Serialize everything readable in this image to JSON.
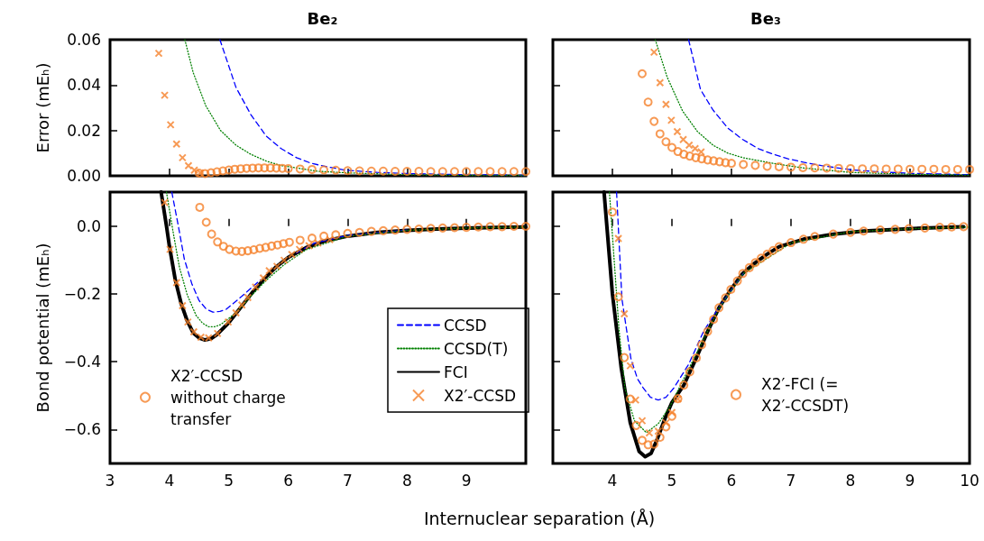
{
  "chart_data": [
    {
      "type": "line",
      "title": "Be₂",
      "ylabel": "Error (mEₕ)",
      "xlim": [
        3,
        10
      ],
      "xticks": [
        3,
        4,
        5,
        6,
        7,
        8,
        9
      ],
      "ylim": [
        0,
        0.06
      ],
      "yticks": [
        {
          "value": 0,
          "label": "0.00"
        },
        0.02,
        0.04,
        0.06
      ],
      "tick_labels": "y",
      "series": [
        {
          "color": "#0000ff",
          "line_style": "dashed",
          "marker": "none",
          "x": [
            4.85,
            5.12,
            5.37,
            5.63,
            5.88,
            6.14,
            6.39,
            6.65,
            6.96,
            7.5,
            8,
            9,
            10
          ],
          "values": [
            0.06,
            0.039,
            0.027,
            0.0175,
            0.012,
            0.008,
            0.0055,
            0.004,
            0.0025,
            0.0015,
            0.001,
            0.0005,
            0.0002
          ]
        },
        {
          "color": "#008000",
          "line_style": "dotted",
          "marker": "none",
          "x": [
            4.26,
            4.4,
            4.61,
            4.86,
            5.12,
            5.37,
            5.63,
            5.88,
            6.14,
            6.5,
            7,
            8,
            9,
            10
          ],
          "values": [
            0.06,
            0.0455,
            0.031,
            0.02,
            0.0135,
            0.0095,
            0.0065,
            0.0045,
            0.0035,
            0.002,
            0.0013,
            0.0005,
            0.0002,
            0.0001
          ]
        },
        {
          "type": "scatter",
          "color": "#f5812a",
          "marker": "cross",
          "x": [
            3.82,
            3.92,
            4.02,
            4.12,
            4.22,
            4.32,
            4.42,
            4.52
          ],
          "values": [
            0.054,
            0.0355,
            0.0225,
            0.014,
            0.008,
            0.0045,
            0.0025,
            0.0013
          ]
        },
        {
          "type": "scatter",
          "color": "#f5812a",
          "marker": "circle",
          "x": [
            4.5,
            4.6,
            4.7,
            4.8,
            4.9,
            5.0,
            5.1,
            5.2,
            5.3,
            5.4,
            5.5,
            5.6,
            5.7,
            5.8,
            5.9,
            6.0,
            6.2,
            6.4,
            6.6,
            6.8,
            7.0,
            7.2,
            7.4,
            7.6,
            7.8,
            8.0,
            8.2,
            8.4,
            8.6,
            8.8,
            9.0,
            9.2,
            9.4,
            9.6,
            9.8,
            10.0
          ],
          "values": [
            0.0012,
            0.001,
            0.0014,
            0.0018,
            0.0022,
            0.0026,
            0.0029,
            0.0031,
            0.0033,
            0.0034,
            0.0035,
            0.0035,
            0.0035,
            0.0034,
            0.0033,
            0.0032,
            0.003,
            0.0028,
            0.0026,
            0.0025,
            0.0023,
            0.0022,
            0.0021,
            0.0021,
            0.002,
            0.002,
            0.002,
            0.0019,
            0.0019,
            0.0019,
            0.0019,
            0.0019,
            0.0019,
            0.0019,
            0.0019,
            0.0019
          ]
        }
      ]
    },
    {
      "type": "line",
      "title": "Be₃",
      "xlim": [
        3,
        10
      ],
      "xticks": [
        4,
        5,
        6,
        7,
        8,
        9,
        10
      ],
      "ylim": [
        0,
        0.06
      ],
      "yticks": [
        0,
        0.02,
        0.04,
        0.06
      ],
      "tick_labels": false,
      "series": [
        {
          "color": "#0000ff",
          "line_style": "dashed",
          "marker": "none",
          "x": [
            5.28,
            5.48,
            5.69,
            5.94,
            6.19,
            6.45,
            6.7,
            6.95,
            7.21,
            7.51,
            8,
            8.5,
            9,
            10
          ],
          "values": [
            0.06,
            0.038,
            0.029,
            0.021,
            0.016,
            0.012,
            0.0095,
            0.0075,
            0.006,
            0.0045,
            0.0027,
            0.0017,
            0.0011,
            0.0005
          ]
        },
        {
          "color": "#008000",
          "line_style": "dotted",
          "marker": "none",
          "x": [
            4.72,
            4.92,
            5.18,
            5.43,
            5.69,
            5.94,
            6.19,
            6.7,
            7.2,
            8,
            9,
            10
          ],
          "values": [
            0.06,
            0.0435,
            0.0285,
            0.0195,
            0.0135,
            0.01,
            0.008,
            0.0055,
            0.0035,
            0.0015,
            0.0007,
            0.0003
          ]
        },
        {
          "type": "scatter",
          "color": "#f5812a",
          "marker": "cross",
          "x": [
            4.7,
            4.8,
            4.9,
            4.99,
            5.09,
            5.19,
            5.29,
            5.39,
            5.49
          ],
          "values": [
            0.0545,
            0.041,
            0.0315,
            0.0245,
            0.0195,
            0.016,
            0.0135,
            0.012,
            0.0105
          ]
        },
        {
          "type": "scatter",
          "color": "#f5812a",
          "marker": "circle",
          "x": [
            4.5,
            4.6,
            4.7,
            4.8,
            4.9,
            5.0,
            5.1,
            5.2,
            5.3,
            5.4,
            5.5,
            5.6,
            5.7,
            5.8,
            5.9,
            6.0,
            6.2,
            6.4,
            6.6,
            6.8,
            7.0,
            7.2,
            7.4,
            7.6,
            7.8,
            8.0,
            8.2,
            8.4,
            8.6,
            8.8,
            9.0,
            9.2,
            9.4,
            9.6,
            9.8,
            10.0
          ],
          "values": [
            0.045,
            0.0325,
            0.024,
            0.0185,
            0.015,
            0.0125,
            0.0107,
            0.0095,
            0.0087,
            0.008,
            0.0075,
            0.007,
            0.0066,
            0.0062,
            0.0058,
            0.0055,
            0.005,
            0.0046,
            0.0042,
            0.004,
            0.0038,
            0.0036,
            0.0035,
            0.0034,
            0.0033,
            0.0032,
            0.0031,
            0.0031,
            0.003,
            0.003,
            0.0029,
            0.0029,
            0.0029,
            0.0028,
            0.0028,
            0.0028
          ]
        }
      ]
    },
    {
      "type": "line",
      "ylabel": "Bond potential (mEₕ)",
      "xlabel": "Internuclear separation (Å)",
      "xlim": [
        3,
        10
      ],
      "xticks": [
        3,
        4,
        5,
        6,
        7,
        8,
        9
      ],
      "ylim": [
        -0.7,
        0.1
      ],
      "yticks": [
        {
          "value": -0.6,
          "label": "−0.6"
        },
        {
          "value": -0.4,
          "label": "−0.4"
        },
        {
          "value": -0.2,
          "label": "−0.2"
        },
        {
          "value": 0,
          "label": "0.0"
        }
      ],
      "legend": "bottom right",
      "series": [
        {
          "name": "CCSD",
          "color": "#0000ff",
          "line_style": "dashed",
          "marker": "none",
          "x": [
            4.04,
            4.15,
            4.25,
            4.38,
            4.5,
            4.62,
            4.73,
            4.85,
            4.96,
            5.22,
            5.53,
            5.83,
            6.14,
            6.45,
            7,
            8
          ],
          "values": [
            0.1,
            0,
            -0.097,
            -0.172,
            -0.22,
            -0.245,
            -0.254,
            -0.252,
            -0.245,
            -0.207,
            -0.159,
            null,
            -0.079,
            -0.05,
            -0.028,
            -0.012
          ]
        },
        {
          "name": "CCSD(T)",
          "color": "#008000",
          "line_style": "dotted",
          "marker": "none",
          "x": [
            3.95,
            4.07,
            4.17,
            4.3,
            4.45,
            4.56,
            4.66,
            4.76,
            4.86,
            5.12,
            5.37,
            5.63,
            5.93,
            6.3,
            7,
            8,
            9,
            10
          ],
          "values": [
            0.1,
            -0.026,
            -0.123,
            -0.203,
            -0.264,
            -0.287,
            -0.297,
            -0.297,
            -0.291,
            -0.256,
            -0.207,
            -0.16,
            -0.114,
            -0.07,
            -0.03,
            -0.013,
            -0.006,
            -0.003
          ]
        },
        {
          "name": "FCI",
          "color": "#000000",
          "line_style": "solid",
          "marker": "none",
          "x": [
            3.86,
            3.95,
            4.0,
            4.1,
            4.2,
            4.3,
            4.4,
            4.5,
            4.6,
            4.7,
            4.8,
            5.0,
            5.2,
            5.4,
            5.6,
            5.8,
            6.0,
            6.3,
            6.6,
            7.0,
            7.5,
            8,
            8.5,
            9,
            9.5,
            10
          ],
          "values": [
            0.1,
            0,
            -0.06,
            -0.16,
            -0.23,
            -0.28,
            -0.315,
            -0.33,
            -0.336,
            -0.332,
            -0.32,
            -0.285,
            -0.24,
            -0.195,
            -0.155,
            -0.12,
            -0.093,
            -0.064,
            -0.045,
            -0.03,
            -0.019,
            -0.013,
            -0.009,
            -0.006,
            -0.004,
            -0.003
          ]
        },
        {
          "name": "X2′-CCSD",
          "type": "scatter",
          "color": "#f5812a",
          "marker": "cross",
          "x": [
            3.92,
            4.01,
            4.12,
            4.22,
            4.31,
            4.41,
            4.53,
            4.66,
            4.81,
            4.99,
            5.12,
            5.22,
            5.32,
            5.45,
            5.58,
            5.68,
            5.81,
            5.93,
            6.06,
            6.19,
            6.35,
            6.5,
            6.7
          ],
          "values": [
            0.069,
            -0.069,
            -0.167,
            -0.235,
            -0.283,
            -0.312,
            -0.328,
            -0.33,
            -0.317,
            -0.283,
            -0.256,
            -0.233,
            -0.211,
            -0.18,
            -0.153,
            -0.132,
            -0.119,
            -0.101,
            -0.084,
            -0.069,
            -0.058,
            -0.05,
            -0.04
          ]
        },
        {
          "name": "X2′-CCSD without charge transfer",
          "type": "scatter",
          "color": "#f5812a",
          "marker": "circle",
          "x": [
            4.51,
            4.62,
            4.71,
            4.81,
            4.91,
            5.01,
            5.12,
            5.22,
            5.32,
            5.42,
            5.52,
            5.62,
            5.72,
            5.82,
            5.92,
            6.02,
            6.2,
            6.4,
            6.6,
            6.8,
            7.0,
            7.2,
            7.4,
            7.6,
            7.8,
            8.0,
            8.2,
            8.4,
            8.6,
            8.8,
            9.0,
            9.2,
            9.4,
            9.6,
            9.8,
            10.0
          ],
          "values": [
            0.055,
            0.011,
            -0.024,
            -0.047,
            -0.06,
            -0.069,
            -0.074,
            -0.075,
            -0.073,
            -0.07,
            -0.066,
            -0.063,
            -0.059,
            -0.056,
            -0.052,
            -0.048,
            -0.042,
            -0.036,
            -0.03,
            -0.026,
            -0.022,
            -0.019,
            -0.016,
            -0.014,
            -0.012,
            -0.01,
            -0.009,
            -0.007,
            -0.006,
            -0.005,
            -0.004,
            -0.003,
            -0.002,
            -0.002,
            -0.001,
            -0.001
          ]
        }
      ]
    },
    {
      "type": "line",
      "xlim": [
        3,
        10
      ],
      "xticks": [
        4,
        5,
        6,
        7,
        8,
        9,
        10
      ],
      "ylim": [
        -0.7,
        0.1
      ],
      "yticks": [
        -0.6,
        -0.4,
        -0.2,
        0
      ],
      "tick_labels": "x",
      "legend": "right",
      "series": [
        {
          "color": "#0000ff",
          "line_style": "dashed",
          "marker": "none",
          "x": [
            4.07,
            4.16,
            4.31,
            4.42,
            4.52,
            4.64,
            4.77,
            4.9,
            5.03,
            5.28,
            5.53,
            5.79,
            6.2
          ],
          "values": [
            0.1,
            -0.215,
            -0.39,
            -0.45,
            -0.478,
            -0.505,
            -0.513,
            -0.505,
            -0.478,
            -0.408,
            -0.311,
            -0.24,
            -0.14
          ]
        },
        {
          "color": "#008000",
          "line_style": "dotted",
          "marker": "none",
          "x": [
            3.95,
            4.04,
            4.11,
            4.21,
            4.37,
            4.57,
            4.77,
            4.97,
            5.17,
            5.4,
            5.8,
            6.2,
            7,
            8,
            9,
            10
          ],
          "values": [
            0.1,
            -0.127,
            -0.303,
            -0.478,
            -0.574,
            -0.609,
            -0.583,
            -0.531,
            -0.46,
            -0.38,
            -0.24,
            -0.14,
            -0.05,
            -0.017,
            -0.008,
            -0.003
          ]
        },
        {
          "color": "#000000",
          "line_style": "solid",
          "marker": "none",
          "x": [
            3.86,
            4.0,
            4.15,
            4.3,
            4.45,
            4.55,
            4.65,
            4.75,
            4.9,
            5.0,
            5.2,
            5.41,
            5.6,
            5.79,
            5.99,
            6.19,
            6.4,
            6.6,
            6.8,
            7.21,
            7.71,
            8.22,
            8.98,
            9.9
          ],
          "values": [
            0.1,
            -0.2,
            -0.42,
            -0.58,
            -0.665,
            -0.68,
            -0.67,
            -0.63,
            -0.56,
            -0.52,
            -0.469,
            -0.389,
            -0.311,
            -0.241,
            -0.187,
            -0.14,
            -0.108,
            -0.083,
            -0.061,
            -0.039,
            -0.024,
            -0.015,
            -0.008,
            -0.002
          ]
        },
        {
          "type": "scatter",
          "color": "#f5812a",
          "marker": "cross",
          "x": [
            4.1,
            4.2,
            4.3,
            4.39,
            4.5,
            4.62,
            4.77,
            4.9,
            5.0,
            5.1
          ],
          "values": [
            -0.037,
            -0.259,
            -0.412,
            -0.513,
            -0.574,
            -0.61,
            -0.605,
            -0.58,
            -0.55,
            -0.51
          ]
        },
        {
          "name": "X2′-FCI (= X2′-CCSDT)",
          "type": "scatter",
          "color": "#f5812a",
          "marker": "circle",
          "x": [
            4.0,
            4.1,
            4.2,
            4.3,
            4.4,
            4.5,
            4.6,
            4.7,
            4.8,
            4.9,
            5.0,
            5.1,
            5.2,
            5.3,
            5.41,
            5.5,
            5.6,
            5.7,
            5.79,
            5.9,
            5.99,
            6.1,
            6.19,
            6.3,
            6.4,
            6.5,
            6.6,
            6.7,
            6.8,
            7.0,
            7.21,
            7.4,
            7.71,
            8.0,
            8.22,
            8.5,
            8.75,
            8.98,
            9.25,
            9.5,
            9.7,
            9.9
          ],
          "values": [
            0.041,
            -0.209,
            -0.388,
            -0.51,
            -0.588,
            -0.632,
            -0.645,
            -0.643,
            -0.623,
            -0.592,
            -0.561,
            -0.509,
            -0.469,
            -0.43,
            -0.389,
            -0.35,
            -0.311,
            -0.275,
            -0.241,
            -0.212,
            -0.187,
            -0.162,
            -0.14,
            -0.123,
            -0.108,
            -0.095,
            -0.083,
            -0.072,
            -0.061,
            -0.049,
            -0.039,
            -0.031,
            -0.024,
            -0.019,
            -0.015,
            -0.012,
            -0.01,
            -0.008,
            -0.006,
            -0.004,
            -0.003,
            -0.002
          ]
        }
      ]
    }
  ]
}
